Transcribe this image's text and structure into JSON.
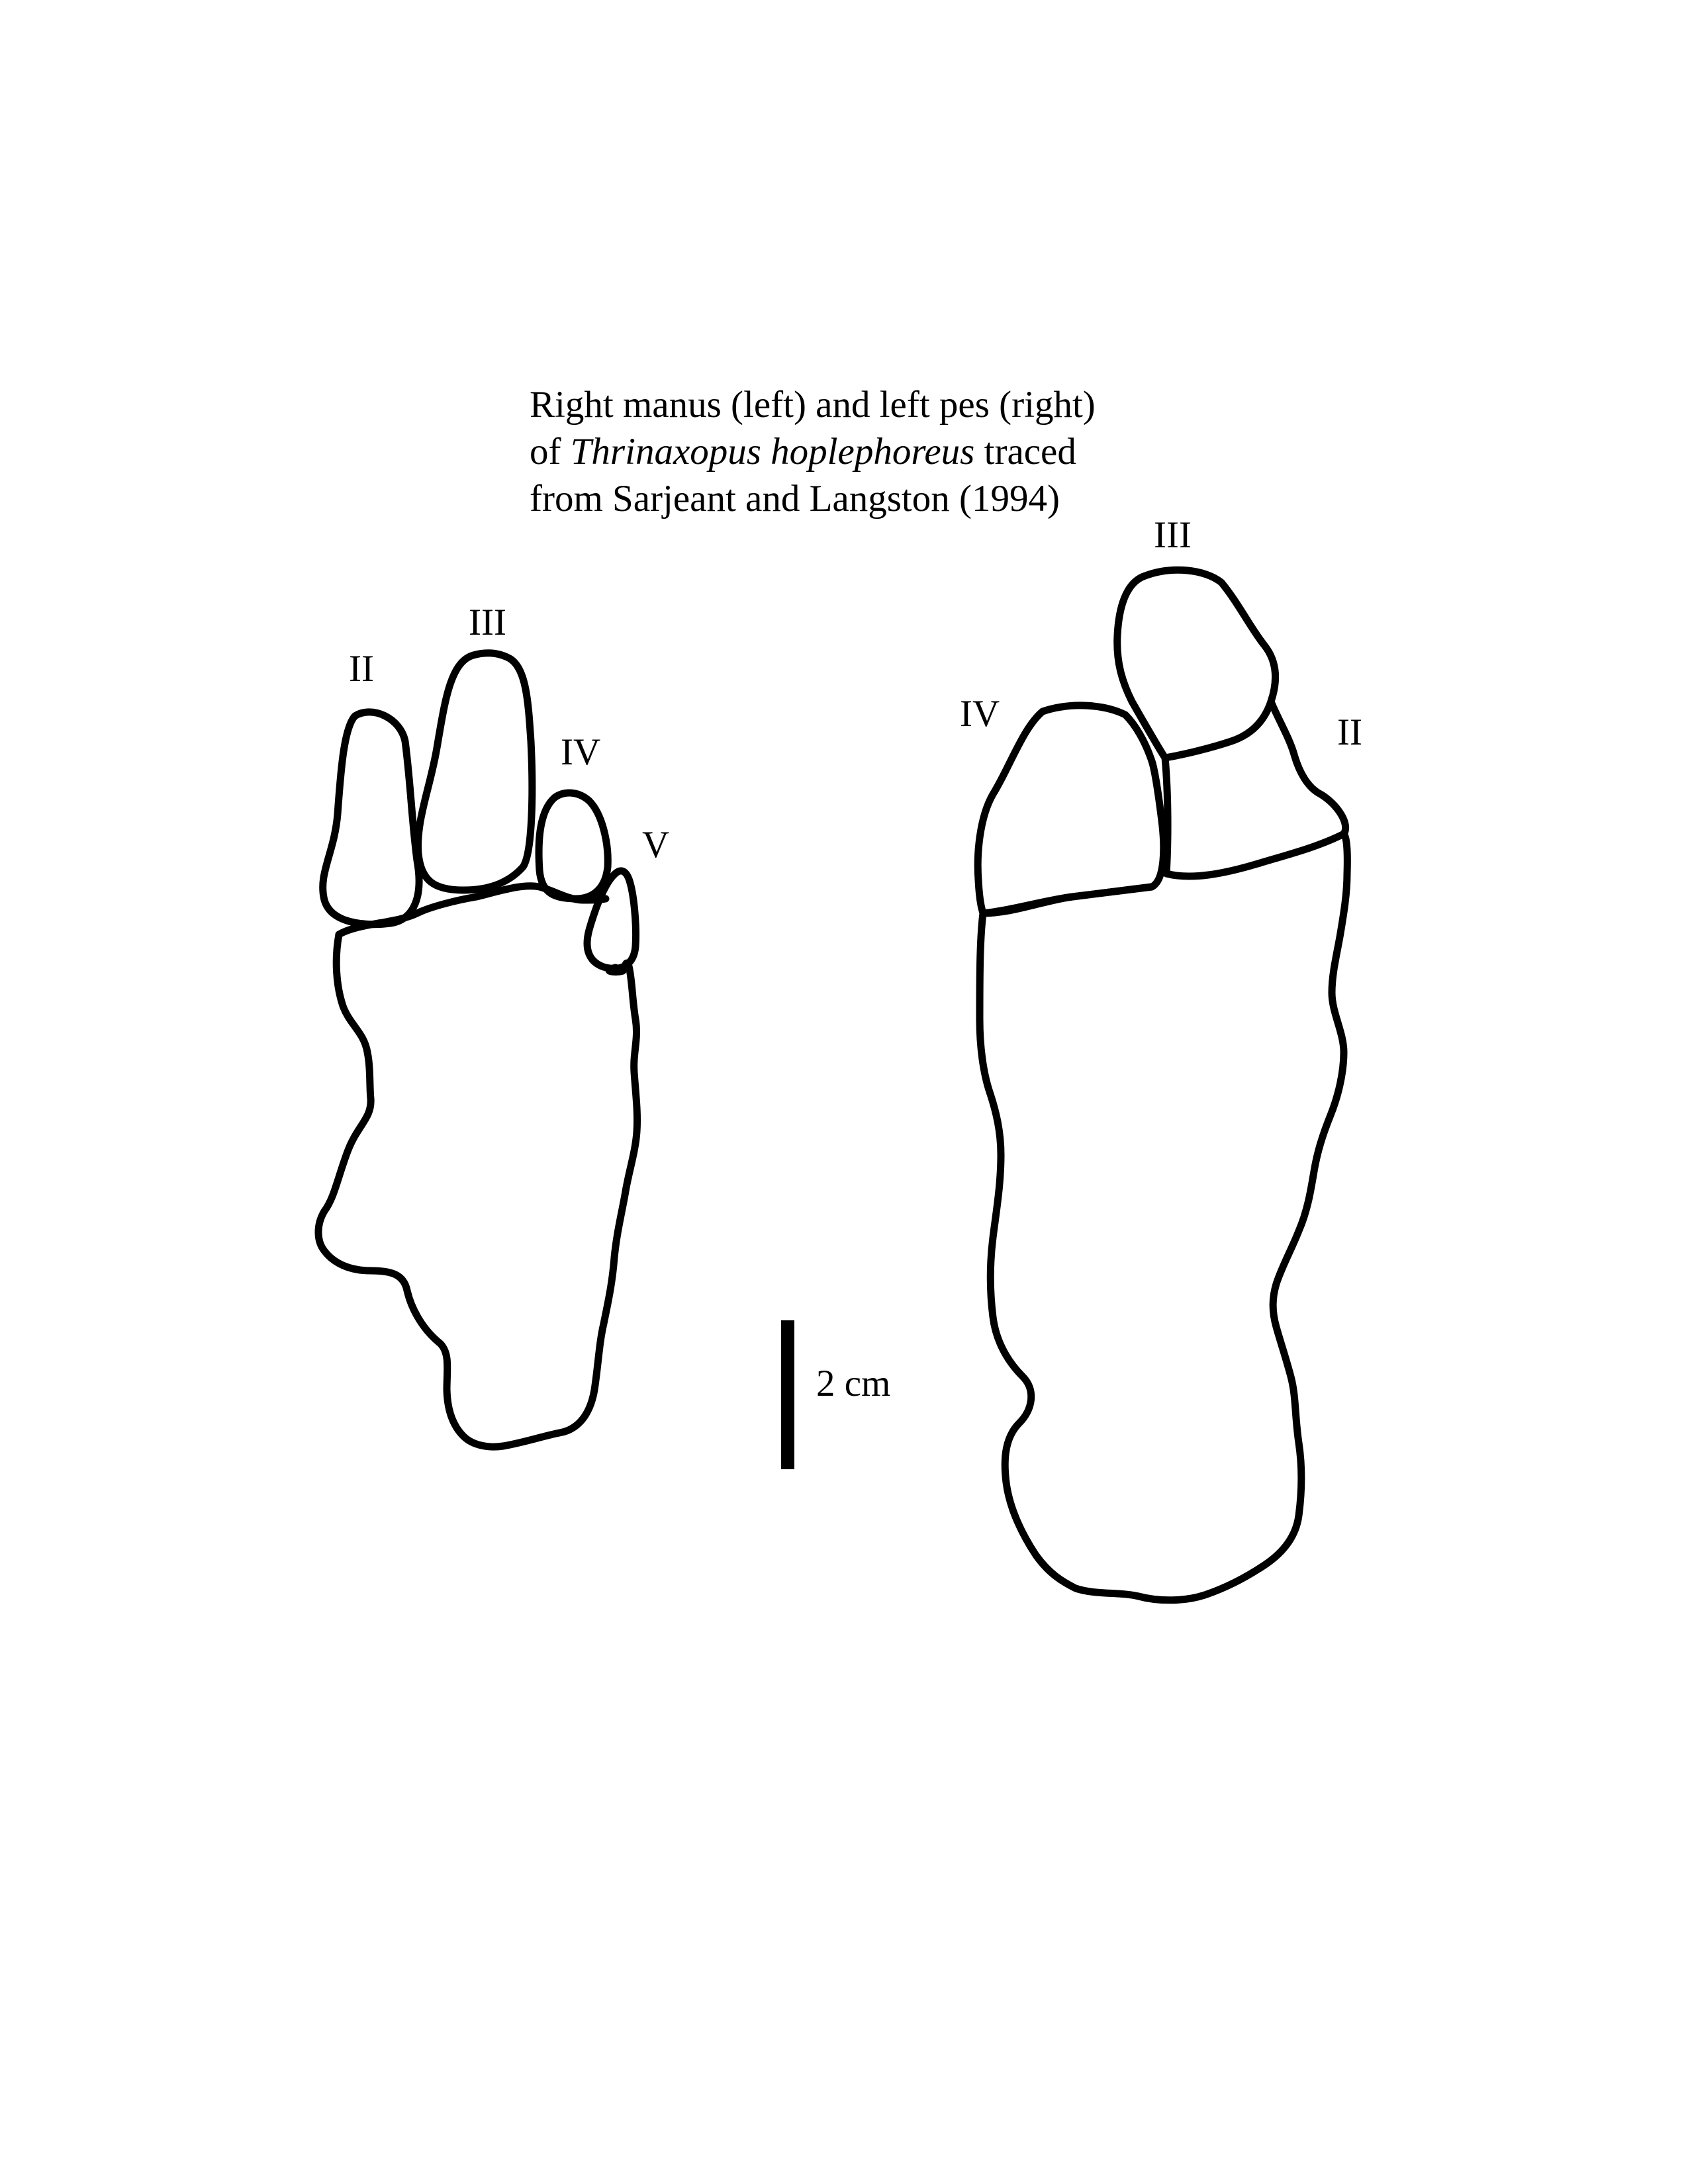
{
  "caption": {
    "line1": "Right manus (left) and left pes (right)",
    "line2_prefix": "of ",
    "line2_species": "Thrinaxopus hoplephoreus",
    "line2_suffix": " traced",
    "line3": "from Sarjeant and Langston (1994)"
  },
  "manus": {
    "digit_labels": [
      "II",
      "III",
      "IV",
      "V"
    ]
  },
  "pes": {
    "digit_labels": [
      "III",
      "IV",
      "II"
    ]
  },
  "scale_bar": {
    "label": "2 cm"
  },
  "colors": {
    "line": "#000000",
    "background": "#ffffff"
  }
}
